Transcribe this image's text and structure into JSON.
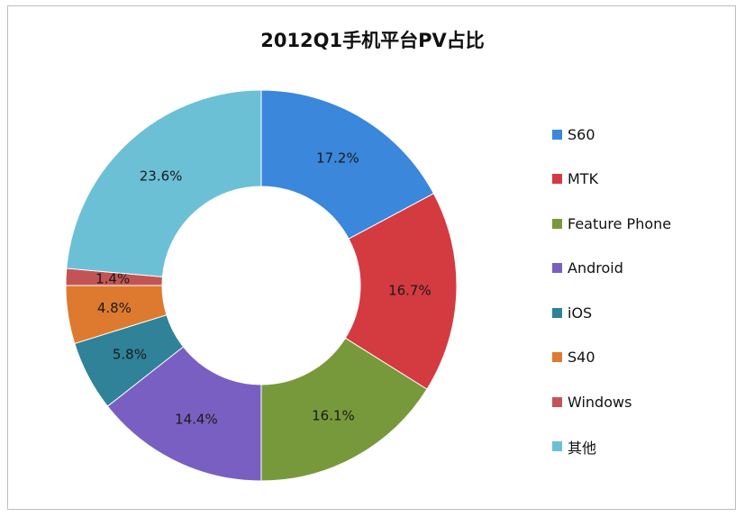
{
  "chart_data": {
    "type": "pie",
    "title": "2012Q1手机平台PV占比",
    "donut": true,
    "legend_position": "right",
    "categories": [
      "S60",
      "MTK",
      "Feature Phone",
      "Android",
      "iOS",
      "S40",
      "Windows",
      "其他"
    ],
    "values": [
      17.2,
      16.7,
      16.1,
      14.4,
      5.8,
      4.8,
      1.4,
      23.6
    ],
    "labels": [
      "17.2%",
      "16.7%",
      "16.1%",
      "14.4%",
      "5.8%",
      "4.8%",
      "1.4%",
      "23.6%"
    ],
    "colors": [
      "#3a87dc",
      "#d33b41",
      "#78993b",
      "#7a5fc2",
      "#2f8297",
      "#de7a30",
      "#c35456",
      "#6cc0d6"
    ]
  }
}
